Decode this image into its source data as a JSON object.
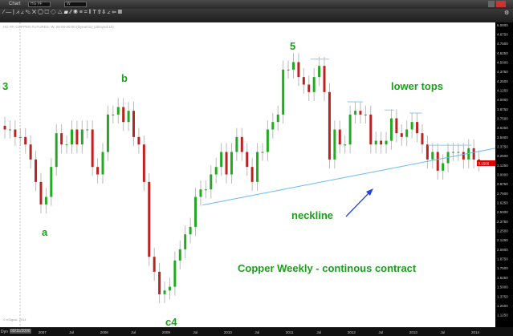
{
  "window": {
    "title": "Chart",
    "symbol": "HG #F",
    "interval": "W"
  },
  "chart_info": "HG #F, COPPER FUTURES, W, 00:00-00:00 (Dynamic) (delayed 10)",
  "copyright": "© eSignal, 2014",
  "bottom_bar": {
    "label": "Dyn",
    "date": "09/11/2006"
  },
  "annotations": {
    "wave3": "3",
    "waveb": "b",
    "wavea": "a",
    "wavec4": "c4",
    "wave5": "5",
    "lower_tops": "lower tops",
    "neckline": "neckline",
    "title": "Copper Weekly - continous contract"
  },
  "colors": {
    "up": "#22aa22",
    "down": "#bb2222",
    "neckline": "#66bbee",
    "resistance": "#88ccee",
    "arrow": "#2244dd",
    "label": "#1aa01a",
    "price_tag": "#e00000"
  },
  "chart_data": {
    "type": "candlestick",
    "xlim": [
      2006.38,
      2014.39
    ],
    "ylim": [
      0.96,
      5.03
    ],
    "x_ticks": [
      "2007",
      "Jul",
      "2008",
      "Jul",
      "2009",
      "Jul",
      "2010",
      "Jul",
      "2011",
      "Jul",
      "2012",
      "Jul",
      "2013",
      "Jul",
      "2014"
    ],
    "y_ticks": [
      "5.0000",
      "4.8750",
      "4.7500",
      "4.6250",
      "4.5000",
      "4.3750",
      "4.2500",
      "4.1250",
      "4.0000",
      "3.8750",
      "3.7500",
      "3.6250",
      "3.5000",
      "3.3750",
      "3.2500",
      "3.1250",
      "3.0000",
      "2.8750",
      "2.7500",
      "2.6250",
      "2.5000",
      "2.3750",
      "2.2500",
      "2.1250",
      "2.0000",
      "1.8750",
      "1.7500",
      "1.6250",
      "1.5000",
      "1.3750",
      "1.2500",
      "1.1250"
    ],
    "last_price": "3.1505",
    "start": "2006-06",
    "monthly_close": [
      3.6,
      3.6,
      3.5,
      3.5,
      3.4,
      3.2,
      2.9,
      2.6,
      2.7,
      3.1,
      3.55,
      3.4,
      3.4,
      3.6,
      3.4,
      3.6,
      3.6,
      3.1,
      3.0,
      3.3,
      3.8,
      3.8,
      3.9,
      3.7,
      3.85,
      3.5,
      3.4,
      2.9,
      1.9,
      1.7,
      1.4,
      1.45,
      1.5,
      1.85,
      2.0,
      2.2,
      2.3,
      2.7,
      2.8,
      2.8,
      3.0,
      3.1,
      3.3,
      3.0,
      3.3,
      3.5,
      3.3,
      3.1,
      2.9,
      3.3,
      3.3,
      3.6,
      3.7,
      3.8,
      4.4,
      4.4,
      4.5,
      4.3,
      4.2,
      4.1,
      4.3,
      4.45,
      4.1,
      3.2,
      3.6,
      3.4,
      3.4,
      3.8,
      3.85,
      3.8,
      3.8,
      3.4,
      3.45,
      3.4,
      3.45,
      3.75,
      3.55,
      3.5,
      3.6,
      3.7,
      3.55,
      3.4,
      3.2,
      3.3,
      3.05,
      3.15,
      3.3,
      3.3,
      3.3,
      3.2,
      3.35,
      3.2,
      3.16
    ],
    "neckline": [
      [
        2009.65,
        2.59
      ],
      [
        2014.39,
        3.35
      ]
    ],
    "resistance_lines": [
      [
        2011.4,
        2011.7,
        4.54
      ],
      [
        2012.0,
        2012.25,
        3.97
      ],
      [
        2012.6,
        2012.75,
        3.86
      ],
      [
        2013.0,
        2013.2,
        3.82
      ],
      [
        2013.3,
        2014.0,
        3.39
      ]
    ]
  }
}
